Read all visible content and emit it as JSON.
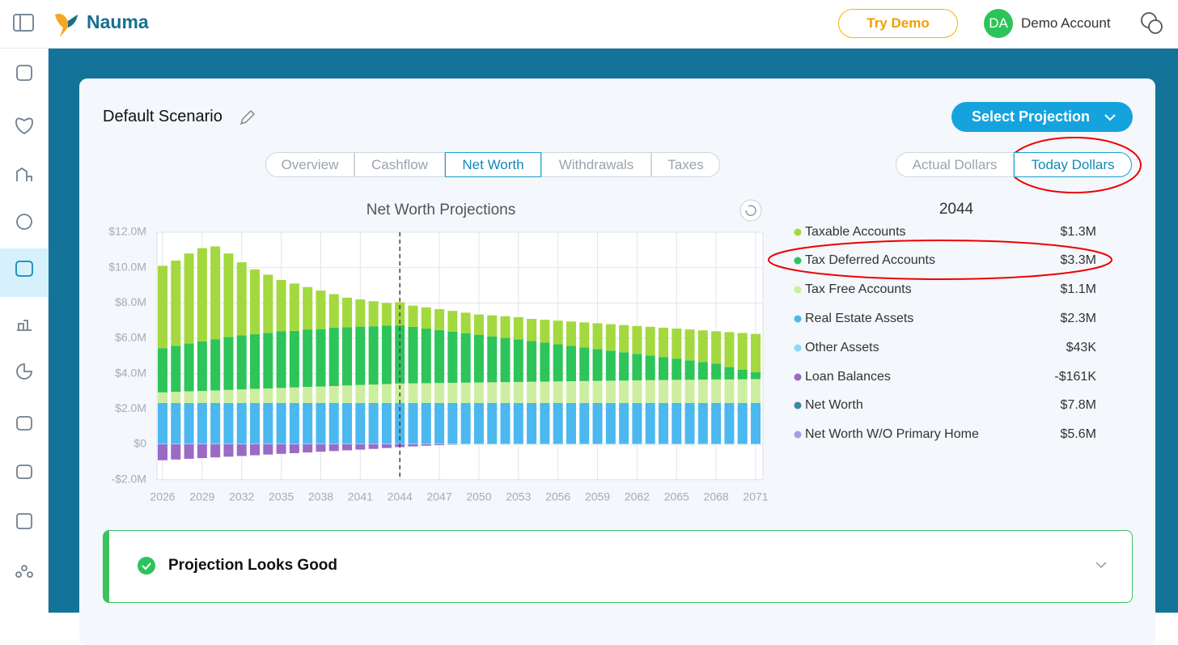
{
  "header": {
    "brand": "Nauma",
    "try_demo": "Try Demo",
    "avatar": "DA",
    "account": "Demo Account"
  },
  "scenario": {
    "title": "Default Scenario",
    "select": "Select Projection"
  },
  "tabs": [
    "Overview",
    "Cashflow",
    "Net Worth",
    "Withdrawals",
    "Taxes"
  ],
  "active_tab": "Net Worth",
  "dollar_modes": [
    "Actual Dollars",
    "Today Dollars"
  ],
  "active_mode": "Today Dollars",
  "chart_data": {
    "type": "stacked_bar",
    "title": "Net Worth Projections",
    "categories": [
      2026,
      null,
      null,
      2029,
      null,
      null,
      2032,
      null,
      null,
      2035,
      null,
      null,
      2038,
      null,
      null,
      2041,
      null,
      null,
      2044,
      null,
      null,
      2047,
      null,
      null,
      2050,
      null,
      null,
      2053,
      null,
      null,
      2056,
      null,
      null,
      2059,
      null,
      null,
      2062,
      null,
      null,
      2065,
      null,
      null,
      2068,
      null,
      null,
      2071
    ],
    "series": [
      {
        "name": "Taxable Accounts",
        "color": "#a3d93f",
        "values": [
          4.66,
          4.83,
          5.1,
          5.28,
          5.25,
          4.72,
          4.14,
          3.66,
          3.29,
          2.91,
          2.68,
          2.4,
          2.18,
          1.9,
          1.67,
          1.54,
          1.42,
          1.29,
          1.3,
          1.2,
          1.19,
          1.18,
          1.17,
          1.16,
          1.15,
          1.19,
          1.23,
          1.27,
          1.26,
          1.3,
          1.34,
          1.38,
          1.42,
          1.46,
          1.5,
          1.54,
          1.58,
          1.62,
          1.66,
          1.7,
          1.75,
          1.79,
          1.83,
          1.98,
          2.07,
          2.16
        ]
      },
      {
        "name": "Tax Deferred Accounts",
        "color": "#2dc45a",
        "values": [
          2.5,
          2.6,
          2.7,
          2.8,
          2.9,
          3.0,
          3.05,
          3.1,
          3.15,
          3.2,
          3.2,
          3.25,
          3.25,
          3.3,
          3.3,
          3.3,
          3.3,
          3.3,
          3.3,
          3.2,
          3.1,
          3.0,
          2.9,
          2.8,
          2.7,
          2.6,
          2.5,
          2.4,
          2.3,
          2.2,
          2.1,
          2.0,
          1.9,
          1.8,
          1.7,
          1.6,
          1.5,
          1.4,
          1.3,
          1.2,
          1.1,
          1.0,
          0.9,
          0.7,
          0.55,
          0.4
        ]
      },
      {
        "name": "Tax Free Accounts",
        "color": "#cdeea0",
        "values": [
          0.6,
          0.63,
          0.66,
          0.68,
          0.71,
          0.74,
          0.77,
          0.8,
          0.82,
          0.85,
          0.88,
          0.91,
          0.93,
          0.96,
          0.99,
          1.02,
          1.04,
          1.07,
          1.1,
          1.11,
          1.12,
          1.13,
          1.14,
          1.15,
          1.16,
          1.17,
          1.18,
          1.19,
          1.2,
          1.21,
          1.22,
          1.23,
          1.24,
          1.25,
          1.26,
          1.27,
          1.28,
          1.29,
          1.3,
          1.31,
          1.31,
          1.32,
          1.33,
          1.33,
          1.34,
          1.35
        ]
      },
      {
        "name": "Real Estate Assets",
        "color": "#4bb8f0",
        "values": [
          2.3,
          2.3,
          2.3,
          2.3,
          2.3,
          2.3,
          2.3,
          2.3,
          2.3,
          2.3,
          2.3,
          2.3,
          2.3,
          2.3,
          2.3,
          2.3,
          2.3,
          2.3,
          2.3,
          2.3,
          2.3,
          2.3,
          2.3,
          2.3,
          2.3,
          2.3,
          2.3,
          2.3,
          2.3,
          2.3,
          2.3,
          2.3,
          2.3,
          2.3,
          2.3,
          2.3,
          2.3,
          2.3,
          2.3,
          2.3,
          2.3,
          2.3,
          2.3,
          2.3,
          2.3,
          2.3
        ]
      },
      {
        "name": "Other Assets",
        "color": "#8fd8f5",
        "values": [
          0.04,
          0.04,
          0.04,
          0.04,
          0.04,
          0.04,
          0.04,
          0.04,
          0.04,
          0.04,
          0.04,
          0.04,
          0.04,
          0.04,
          0.04,
          0.04,
          0.04,
          0.04,
          0.04,
          0.04,
          0.04,
          0.04,
          0.04,
          0.04,
          0.04,
          0.04,
          0.04,
          0.04,
          0.04,
          0.04,
          0.04,
          0.04,
          0.04,
          0.04,
          0.04,
          0.04,
          0.04,
          0.04,
          0.04,
          0.04,
          0.04,
          0.04,
          0.04,
          0.04,
          0.04,
          0.04
        ]
      },
      {
        "name": "Loan Balances",
        "color": "#9b6ac4",
        "values": [
          -0.9,
          -0.86,
          -0.82,
          -0.78,
          -0.74,
          -0.7,
          -0.66,
          -0.62,
          -0.58,
          -0.54,
          -0.5,
          -0.46,
          -0.42,
          -0.38,
          -0.34,
          -0.3,
          -0.26,
          -0.21,
          -0.16,
          -0.12,
          -0.08,
          -0.05,
          -0.02,
          0,
          0,
          0,
          0,
          0,
          0,
          0,
          0,
          0,
          0,
          0,
          0,
          0,
          0,
          0,
          0,
          0,
          0,
          0,
          0,
          0,
          0,
          0
        ]
      }
    ],
    "ylim": [
      -2,
      12
    ],
    "yticks": [
      {
        "value": -2,
        "label": "-$2.0M"
      },
      {
        "value": 0,
        "label": "$0"
      },
      {
        "value": 2,
        "label": "$2.0M"
      },
      {
        "value": 4,
        "label": "$4.0M"
      },
      {
        "value": 6,
        "label": "$6.0M"
      },
      {
        "value": 8,
        "label": "$8.0M"
      },
      {
        "value": 10,
        "label": "$10.0M"
      },
      {
        "value": 12,
        "label": "$12.0M"
      }
    ],
    "grid": true
  },
  "breakdown": {
    "year": "2044",
    "values": [
      "$1.3M",
      "$3.3M",
      "$1.1M",
      "$2.3M",
      "$43K",
      "-$161K"
    ],
    "extra": [
      {
        "name": "Net Worth",
        "value": "$7.8M",
        "color": "#3a8aa0"
      },
      {
        "name": "Net Worth W/O Primary Home",
        "value": "$5.6M",
        "color": "#a89ee0"
      }
    ]
  },
  "status": "Projection Looks Good"
}
